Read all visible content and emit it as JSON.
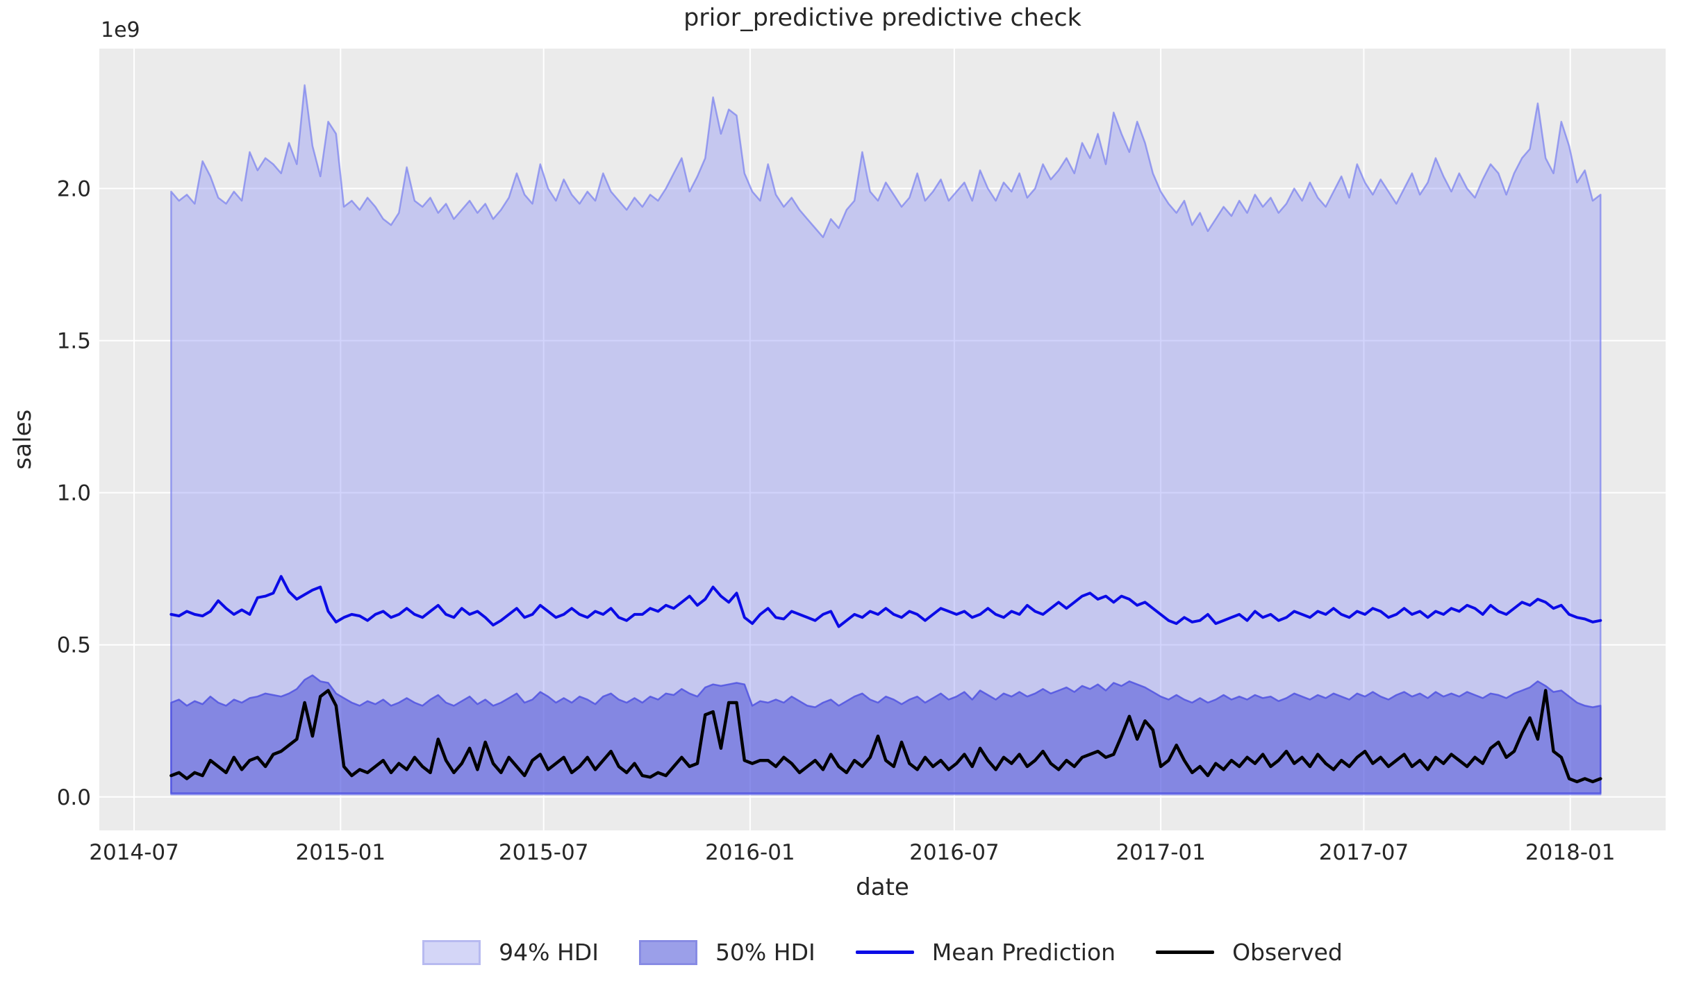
{
  "chart_data": {
    "type": "line",
    "title": "prior_predictive predictive check",
    "xlabel": "date",
    "ylabel": "sales",
    "y_offset_text": "1e9",
    "grid": true,
    "plot_background": "#ebebeb",
    "grid_color": "#ffffff",
    "ylim": [
      -0.11,
      2.46
    ],
    "y_ticks": [
      {
        "value": 0.0,
        "label": "0.0"
      },
      {
        "value": 0.5,
        "label": "0.5"
      },
      {
        "value": 1.0,
        "label": "1.0"
      },
      {
        "value": 1.5,
        "label": "1.5"
      },
      {
        "value": 2.0,
        "label": "2.0"
      }
    ],
    "x_axis": {
      "lim": [
        "2014-05-31",
        "2018-03-27"
      ],
      "ticks": [
        {
          "date": "2014-07-01",
          "label": "2014-07"
        },
        {
          "date": "2015-01-01",
          "label": "2015-01"
        },
        {
          "date": "2015-07-01",
          "label": "2015-07"
        },
        {
          "date": "2016-01-01",
          "label": "2016-01"
        },
        {
          "date": "2016-07-01",
          "label": "2016-07"
        },
        {
          "date": "2017-01-01",
          "label": "2017-01"
        },
        {
          "date": "2017-07-01",
          "label": "2017-07"
        },
        {
          "date": "2018-01-01",
          "label": "2018-01"
        }
      ]
    },
    "x_start_date": "2014-08-03",
    "x_interval_days": 7,
    "n_points": 183,
    "value_units": "1e9",
    "series": [
      {
        "name": "94% HDI",
        "type": "band",
        "fill": "rgba(123,130,245,0.34)",
        "edge": "rgba(104,111,238,0.6)",
        "edge_width": 2.5,
        "lower_const": 0.008,
        "upper": [
          1.99,
          1.96,
          1.98,
          1.95,
          2.09,
          2.04,
          1.97,
          1.95,
          1.99,
          1.96,
          2.12,
          2.06,
          2.1,
          2.08,
          2.05,
          2.15,
          2.08,
          2.34,
          2.14,
          2.04,
          2.22,
          2.18,
          1.94,
          1.96,
          1.93,
          1.97,
          1.94,
          1.9,
          1.88,
          1.92,
          2.07,
          1.96,
          1.94,
          1.97,
          1.92,
          1.95,
          1.9,
          1.93,
          1.96,
          1.92,
          1.95,
          1.9,
          1.93,
          1.97,
          2.05,
          1.98,
          1.95,
          2.08,
          2.0,
          1.96,
          2.03,
          1.98,
          1.95,
          1.99,
          1.96,
          2.05,
          1.99,
          1.96,
          1.93,
          1.97,
          1.94,
          1.98,
          1.96,
          2.0,
          2.05,
          2.1,
          1.99,
          2.04,
          2.1,
          2.3,
          2.18,
          2.26,
          2.24,
          2.05,
          1.99,
          1.96,
          2.08,
          1.98,
          1.94,
          1.97,
          1.93,
          1.9,
          1.87,
          1.84,
          1.9,
          1.87,
          1.93,
          1.96,
          2.12,
          1.99,
          1.96,
          2.02,
          1.98,
          1.94,
          1.97,
          2.05,
          1.96,
          1.99,
          2.03,
          1.96,
          1.99,
          2.02,
          1.96,
          2.06,
          2.0,
          1.96,
          2.02,
          1.99,
          2.05,
          1.97,
          2.0,
          2.08,
          2.03,
          2.06,
          2.1,
          2.05,
          2.15,
          2.1,
          2.18,
          2.08,
          2.25,
          2.18,
          2.12,
          2.22,
          2.15,
          2.05,
          1.99,
          1.95,
          1.92,
          1.96,
          1.88,
          1.92,
          1.86,
          1.9,
          1.94,
          1.91,
          1.96,
          1.92,
          1.98,
          1.94,
          1.97,
          1.92,
          1.95,
          2.0,
          1.96,
          2.02,
          1.97,
          1.94,
          1.99,
          2.04,
          1.97,
          2.08,
          2.02,
          1.98,
          2.03,
          1.99,
          1.95,
          2.0,
          2.05,
          1.98,
          2.02,
          2.1,
          2.04,
          1.99,
          2.05,
          2.0,
          1.97,
          2.03,
          2.08,
          2.05,
          1.98,
          2.05,
          2.1,
          2.13,
          2.28,
          2.1,
          2.05,
          2.22,
          2.14,
          2.02,
          2.06,
          1.96,
          1.98
        ]
      },
      {
        "name": "50% HDI",
        "type": "band",
        "fill": "rgba(73,77,215,0.52)",
        "edge": "rgba(80,84,225,0.85)",
        "edge_width": 2.5,
        "lower_const": 0.012,
        "upper": [
          0.31,
          0.32,
          0.3,
          0.315,
          0.305,
          0.33,
          0.31,
          0.3,
          0.32,
          0.31,
          0.325,
          0.33,
          0.34,
          0.335,
          0.33,
          0.34,
          0.355,
          0.385,
          0.4,
          0.38,
          0.375,
          0.34,
          0.325,
          0.31,
          0.3,
          0.315,
          0.305,
          0.32,
          0.3,
          0.31,
          0.325,
          0.31,
          0.3,
          0.32,
          0.335,
          0.31,
          0.3,
          0.315,
          0.33,
          0.305,
          0.32,
          0.3,
          0.31,
          0.325,
          0.34,
          0.31,
          0.32,
          0.345,
          0.33,
          0.31,
          0.325,
          0.31,
          0.33,
          0.32,
          0.305,
          0.33,
          0.34,
          0.32,
          0.31,
          0.325,
          0.31,
          0.33,
          0.32,
          0.34,
          0.335,
          0.355,
          0.34,
          0.33,
          0.36,
          0.37,
          0.365,
          0.37,
          0.375,
          0.37,
          0.3,
          0.315,
          0.31,
          0.32,
          0.31,
          0.33,
          0.315,
          0.3,
          0.295,
          0.31,
          0.32,
          0.3,
          0.315,
          0.33,
          0.34,
          0.32,
          0.31,
          0.33,
          0.32,
          0.305,
          0.32,
          0.33,
          0.31,
          0.325,
          0.34,
          0.32,
          0.33,
          0.345,
          0.32,
          0.35,
          0.335,
          0.32,
          0.34,
          0.33,
          0.345,
          0.33,
          0.34,
          0.355,
          0.34,
          0.35,
          0.36,
          0.345,
          0.365,
          0.355,
          0.37,
          0.35,
          0.375,
          0.365,
          0.38,
          0.37,
          0.36,
          0.345,
          0.33,
          0.32,
          0.335,
          0.32,
          0.31,
          0.325,
          0.31,
          0.32,
          0.335,
          0.32,
          0.33,
          0.32,
          0.335,
          0.325,
          0.33,
          0.315,
          0.325,
          0.34,
          0.33,
          0.32,
          0.335,
          0.325,
          0.34,
          0.33,
          0.32,
          0.34,
          0.33,
          0.345,
          0.33,
          0.32,
          0.335,
          0.345,
          0.33,
          0.34,
          0.325,
          0.345,
          0.33,
          0.34,
          0.33,
          0.345,
          0.335,
          0.325,
          0.34,
          0.335,
          0.325,
          0.34,
          0.35,
          0.36,
          0.38,
          0.365,
          0.345,
          0.35,
          0.33,
          0.31,
          0.3,
          0.295,
          0.3
        ]
      },
      {
        "name": "Mean Prediction",
        "type": "line",
        "color": "#0b0be6",
        "width": 4,
        "values": [
          0.6,
          0.595,
          0.61,
          0.6,
          0.595,
          0.61,
          0.645,
          0.62,
          0.6,
          0.615,
          0.6,
          0.655,
          0.66,
          0.67,
          0.725,
          0.675,
          0.65,
          0.665,
          0.68,
          0.69,
          0.61,
          0.575,
          0.59,
          0.6,
          0.595,
          0.58,
          0.6,
          0.61,
          0.59,
          0.6,
          0.62,
          0.6,
          0.59,
          0.61,
          0.63,
          0.6,
          0.59,
          0.62,
          0.6,
          0.61,
          0.59,
          0.565,
          0.58,
          0.6,
          0.62,
          0.59,
          0.6,
          0.63,
          0.61,
          0.59,
          0.6,
          0.62,
          0.6,
          0.59,
          0.61,
          0.6,
          0.62,
          0.59,
          0.58,
          0.6,
          0.6,
          0.62,
          0.61,
          0.63,
          0.62,
          0.64,
          0.66,
          0.63,
          0.65,
          0.69,
          0.66,
          0.64,
          0.67,
          0.59,
          0.57,
          0.6,
          0.62,
          0.59,
          0.585,
          0.61,
          0.6,
          0.59,
          0.58,
          0.6,
          0.61,
          0.56,
          0.58,
          0.6,
          0.59,
          0.61,
          0.6,
          0.62,
          0.6,
          0.59,
          0.61,
          0.6,
          0.58,
          0.6,
          0.62,
          0.61,
          0.6,
          0.61,
          0.59,
          0.6,
          0.62,
          0.6,
          0.59,
          0.61,
          0.6,
          0.63,
          0.61,
          0.6,
          0.62,
          0.64,
          0.62,
          0.64,
          0.66,
          0.67,
          0.65,
          0.66,
          0.64,
          0.66,
          0.65,
          0.63,
          0.64,
          0.62,
          0.6,
          0.58,
          0.57,
          0.59,
          0.575,
          0.58,
          0.6,
          0.57,
          0.58,
          0.59,
          0.6,
          0.58,
          0.61,
          0.59,
          0.6,
          0.58,
          0.59,
          0.61,
          0.6,
          0.59,
          0.61,
          0.6,
          0.62,
          0.6,
          0.59,
          0.61,
          0.6,
          0.62,
          0.61,
          0.59,
          0.6,
          0.62,
          0.6,
          0.61,
          0.59,
          0.61,
          0.6,
          0.62,
          0.61,
          0.63,
          0.62,
          0.6,
          0.63,
          0.61,
          0.6,
          0.62,
          0.64,
          0.63,
          0.65,
          0.64,
          0.62,
          0.63,
          0.6,
          0.59,
          0.585,
          0.575,
          0.58
        ]
      },
      {
        "name": "Observed",
        "type": "line",
        "color": "#000000",
        "width": 4.5,
        "values": [
          0.07,
          0.08,
          0.06,
          0.08,
          0.07,
          0.12,
          0.1,
          0.08,
          0.13,
          0.09,
          0.12,
          0.13,
          0.1,
          0.14,
          0.15,
          0.17,
          0.19,
          0.31,
          0.2,
          0.33,
          0.35,
          0.3,
          0.1,
          0.07,
          0.09,
          0.08,
          0.1,
          0.12,
          0.08,
          0.11,
          0.09,
          0.13,
          0.1,
          0.08,
          0.19,
          0.12,
          0.08,
          0.11,
          0.16,
          0.09,
          0.18,
          0.11,
          0.08,
          0.13,
          0.1,
          0.07,
          0.12,
          0.14,
          0.09,
          0.11,
          0.13,
          0.08,
          0.1,
          0.13,
          0.09,
          0.12,
          0.15,
          0.1,
          0.08,
          0.11,
          0.07,
          0.065,
          0.08,
          0.07,
          0.1,
          0.13,
          0.1,
          0.11,
          0.27,
          0.28,
          0.16,
          0.31,
          0.31,
          0.12,
          0.11,
          0.12,
          0.12,
          0.1,
          0.13,
          0.11,
          0.08,
          0.1,
          0.12,
          0.09,
          0.14,
          0.1,
          0.08,
          0.12,
          0.1,
          0.13,
          0.2,
          0.12,
          0.1,
          0.18,
          0.11,
          0.09,
          0.13,
          0.1,
          0.12,
          0.09,
          0.11,
          0.14,
          0.1,
          0.16,
          0.12,
          0.09,
          0.13,
          0.11,
          0.14,
          0.1,
          0.12,
          0.15,
          0.11,
          0.09,
          0.12,
          0.1,
          0.13,
          0.14,
          0.15,
          0.13,
          0.14,
          0.2,
          0.265,
          0.19,
          0.25,
          0.22,
          0.1,
          0.12,
          0.17,
          0.12,
          0.08,
          0.1,
          0.07,
          0.11,
          0.09,
          0.12,
          0.1,
          0.13,
          0.11,
          0.14,
          0.1,
          0.12,
          0.15,
          0.11,
          0.13,
          0.1,
          0.14,
          0.11,
          0.09,
          0.12,
          0.1,
          0.13,
          0.15,
          0.11,
          0.13,
          0.1,
          0.12,
          0.14,
          0.1,
          0.12,
          0.09,
          0.13,
          0.11,
          0.14,
          0.12,
          0.1,
          0.13,
          0.11,
          0.16,
          0.18,
          0.13,
          0.15,
          0.21,
          0.26,
          0.19,
          0.35,
          0.15,
          0.13,
          0.06,
          0.05,
          0.06,
          0.05,
          0.06
        ]
      }
    ],
    "legend": {
      "position": "below-center",
      "items": [
        {
          "label": "94% HDI",
          "swatch": "patch",
          "fill": "#d4d6f7",
          "border": "#b7baf0"
        },
        {
          "label": "50% HDI",
          "swatch": "patch",
          "fill": "#9b9fe9",
          "border": "#878be4"
        },
        {
          "label": "Mean Prediction",
          "swatch": "line",
          "color": "#0b0be6"
        },
        {
          "label": "Observed",
          "swatch": "line",
          "color": "#000000"
        }
      ]
    }
  }
}
